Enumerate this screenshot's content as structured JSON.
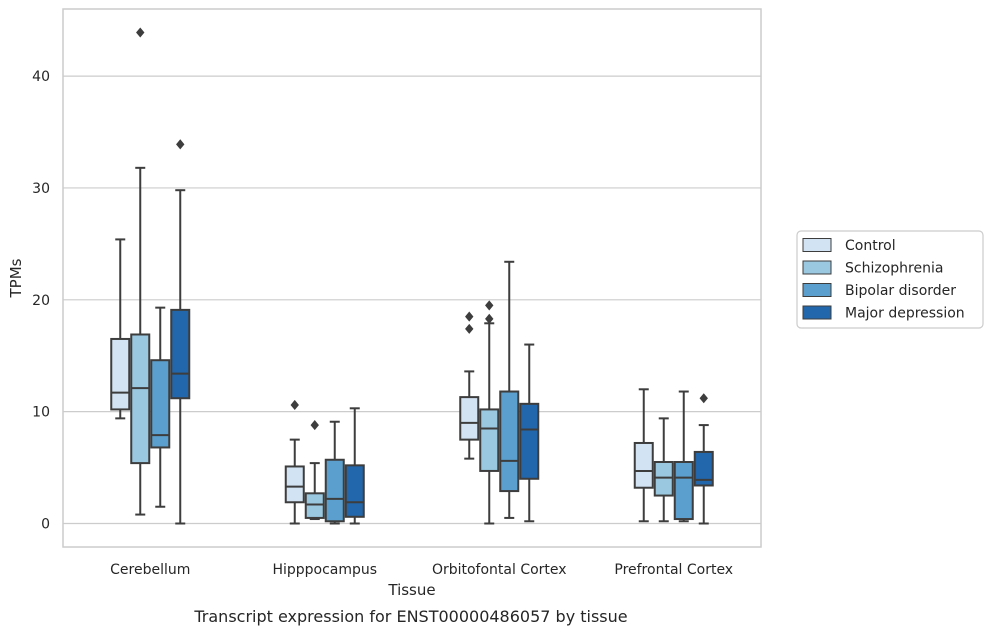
{
  "chart_data": {
    "type": "box",
    "caption": "Transcript expression for ENST00000486057 by tissue",
    "xlabel": "Tissue",
    "ylabel": "TPMs",
    "ylim": [
      -2.1,
      46
    ],
    "yticks": [
      0,
      10,
      20,
      30,
      40
    ],
    "grid": "horizontal",
    "legend_position": "right",
    "categories": [
      "Cerebellum",
      "Hipppocampus",
      "Orbitofontal Cortex",
      "Prefrontal Cortex"
    ],
    "series": [
      {
        "name": "Control",
        "color": "#d2e3f3",
        "boxes": [
          {
            "whislo": 9.4,
            "q1": 10.2,
            "med": 11.7,
            "q3": 16.5,
            "whishi": 25.4,
            "fliers": []
          },
          {
            "whislo": 0.0,
            "q1": 1.9,
            "med": 3.3,
            "q3": 5.1,
            "whishi": 7.5,
            "fliers": [
              10.6
            ]
          },
          {
            "whislo": 5.8,
            "q1": 7.5,
            "med": 9.0,
            "q3": 11.3,
            "whishi": 13.6,
            "fliers": [
              17.4,
              18.5
            ]
          },
          {
            "whislo": 0.2,
            "q1": 3.2,
            "med": 4.7,
            "q3": 7.2,
            "whishi": 12.0,
            "fliers": []
          }
        ]
      },
      {
        "name": "Schizophrenia",
        "color": "#9ac8e0",
        "boxes": [
          {
            "whislo": 0.8,
            "q1": 5.4,
            "med": 12.1,
            "q3": 16.9,
            "whishi": 31.8,
            "fliers": [
              43.9
            ]
          },
          {
            "whislo": 0.4,
            "q1": 0.5,
            "med": 1.7,
            "q3": 2.7,
            "whishi": 5.4,
            "fliers": [
              8.8
            ]
          },
          {
            "whislo": 0.0,
            "q1": 4.7,
            "med": 8.5,
            "q3": 10.2,
            "whishi": 17.9,
            "fliers": [
              18.3,
              19.5
            ]
          },
          {
            "whislo": 0.2,
            "q1": 2.5,
            "med": 4.1,
            "q3": 5.5,
            "whishi": 9.4,
            "fliers": []
          }
        ]
      },
      {
        "name": "Bipolar disorder",
        "color": "#5a9fcd",
        "boxes": [
          {
            "whislo": 1.5,
            "q1": 6.8,
            "med": 7.9,
            "q3": 14.6,
            "whishi": 19.3,
            "fliers": []
          },
          {
            "whislo": 0.0,
            "q1": 0.2,
            "med": 2.2,
            "q3": 5.7,
            "whishi": 9.1,
            "fliers": []
          },
          {
            "whislo": 0.5,
            "q1": 2.9,
            "med": 5.6,
            "q3": 11.8,
            "whishi": 23.4,
            "fliers": []
          },
          {
            "whislo": 0.2,
            "q1": 0.4,
            "med": 4.1,
            "q3": 5.5,
            "whishi": 11.8,
            "fliers": []
          }
        ]
      },
      {
        "name": "Major depression",
        "color": "#2266ab",
        "boxes": [
          {
            "whislo": 0.0,
            "q1": 11.2,
            "med": 13.4,
            "q3": 19.1,
            "whishi": 29.8,
            "fliers": [
              33.9
            ]
          },
          {
            "whislo": 0.0,
            "q1": 0.6,
            "med": 1.9,
            "q3": 5.2,
            "whishi": 10.3,
            "fliers": []
          },
          {
            "whislo": 0.2,
            "q1": 4.0,
            "med": 8.4,
            "q3": 10.7,
            "whishi": 16.0,
            "fliers": []
          },
          {
            "whislo": 0.0,
            "q1": 3.4,
            "med": 3.9,
            "q3": 6.4,
            "whishi": 8.8,
            "fliers": [
              11.2
            ]
          }
        ]
      }
    ],
    "colors": {
      "grid": "#cccccc",
      "frame": "#cccccc",
      "stroke": "#3d3d3d"
    }
  }
}
